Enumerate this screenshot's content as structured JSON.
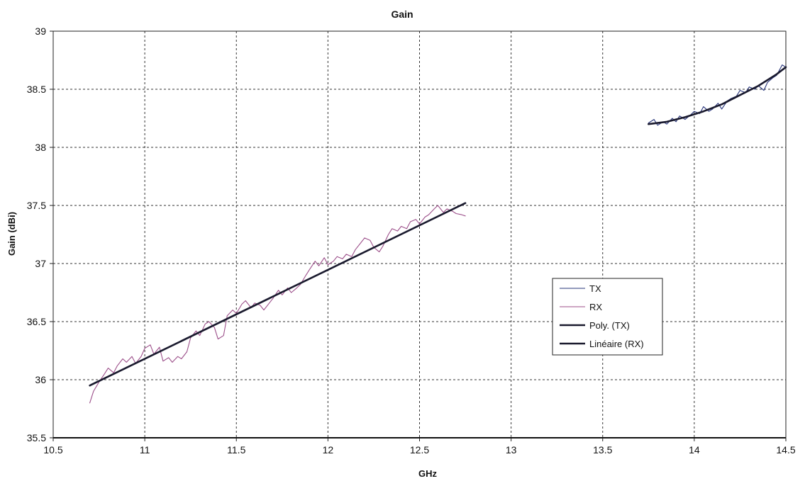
{
  "chart_data": {
    "type": "line",
    "title": "Gain",
    "xlabel": "GHz",
    "ylabel": "Gain (dBi)",
    "xlim": [
      10.5,
      14.5
    ],
    "ylim": [
      35.5,
      39
    ],
    "x_ticks": [
      "10.5",
      "11",
      "11.5",
      "12",
      "12.5",
      "13",
      "13.5",
      "14",
      "14.5"
    ],
    "y_ticks": [
      "35.5",
      "36",
      "36.5",
      "37",
      "37.5",
      "38",
      "38.5",
      "39"
    ],
    "grid": true,
    "legend_position": "right",
    "series": [
      {
        "name": "TX",
        "color": "#27347a",
        "line_style": "thin",
        "x": [
          13.75,
          13.78,
          13.8,
          13.83,
          13.85,
          13.88,
          13.9,
          13.92,
          13.95,
          13.98,
          14.0,
          14.03,
          14.05,
          14.08,
          14.1,
          14.13,
          14.15,
          14.18,
          14.2,
          14.23,
          14.25,
          14.28,
          14.3,
          14.33,
          14.35,
          14.38,
          14.4,
          14.43,
          14.45,
          14.48,
          14.5
        ],
        "y": [
          38.21,
          38.24,
          38.19,
          38.22,
          38.2,
          38.25,
          38.22,
          38.27,
          38.24,
          38.28,
          38.31,
          38.29,
          38.35,
          38.31,
          38.33,
          38.38,
          38.33,
          38.4,
          38.42,
          38.44,
          38.49,
          38.47,
          38.52,
          38.5,
          38.53,
          38.49,
          38.56,
          38.6,
          38.62,
          38.71,
          38.69
        ]
      },
      {
        "name": "RX",
        "color": "#9c4f8a",
        "line_style": "thin",
        "x": [
          10.7,
          10.72,
          10.75,
          10.78,
          10.8,
          10.83,
          10.85,
          10.88,
          10.9,
          10.93,
          10.95,
          10.98,
          11.0,
          11.03,
          11.05,
          11.08,
          11.1,
          11.13,
          11.15,
          11.18,
          11.2,
          11.23,
          11.25,
          11.28,
          11.3,
          11.33,
          11.35,
          11.38,
          11.4,
          11.43,
          11.45,
          11.48,
          11.5,
          11.53,
          11.55,
          11.58,
          11.6,
          11.63,
          11.65,
          11.68,
          11.7,
          11.73,
          11.75,
          11.78,
          11.8,
          11.83,
          11.85,
          11.88,
          11.9,
          11.93,
          11.95,
          11.98,
          12.0,
          12.03,
          12.05,
          12.08,
          12.1,
          12.13,
          12.15,
          12.18,
          12.2,
          12.23,
          12.25,
          12.28,
          12.3,
          12.33,
          12.35,
          12.38,
          12.4,
          12.43,
          12.45,
          12.48,
          12.5,
          12.53,
          12.55,
          12.58,
          12.6,
          12.63,
          12.65,
          12.68,
          12.7,
          12.73,
          12.75
        ],
        "y": [
          35.8,
          35.9,
          35.98,
          36.05,
          36.1,
          36.06,
          36.12,
          36.18,
          36.15,
          36.2,
          36.14,
          36.2,
          36.27,
          36.3,
          36.22,
          36.28,
          36.16,
          36.19,
          36.15,
          36.2,
          36.18,
          36.24,
          36.36,
          36.42,
          36.38,
          36.48,
          36.5,
          36.45,
          36.35,
          36.38,
          36.55,
          36.6,
          36.57,
          36.65,
          36.68,
          36.62,
          36.66,
          36.64,
          36.6,
          36.66,
          36.7,
          36.77,
          36.73,
          36.79,
          36.75,
          36.79,
          36.82,
          36.9,
          36.95,
          37.02,
          36.98,
          37.05,
          36.99,
          37.02,
          37.06,
          37.04,
          37.08,
          37.06,
          37.12,
          37.18,
          37.22,
          37.2,
          37.14,
          37.1,
          37.15,
          37.25,
          37.3,
          37.28,
          37.32,
          37.3,
          37.36,
          37.38,
          37.34,
          37.4,
          37.42,
          37.47,
          37.5,
          37.44,
          37.47,
          37.45,
          37.43,
          37.42,
          37.41
        ]
      },
      {
        "name": "Poly. (TX)",
        "color": "#1a1a2e",
        "line_style": "thick",
        "x": [
          13.75,
          13.85,
          13.95,
          14.05,
          14.15,
          14.25,
          14.35,
          14.45,
          14.5
        ],
        "y": [
          38.2,
          38.22,
          38.26,
          38.31,
          38.37,
          38.45,
          38.53,
          38.63,
          38.69
        ]
      },
      {
        "name": "Linéaire (RX)",
        "color": "#1a1a2e",
        "line_style": "thick",
        "x": [
          10.7,
          12.75
        ],
        "y": [
          35.95,
          37.52
        ]
      }
    ]
  }
}
